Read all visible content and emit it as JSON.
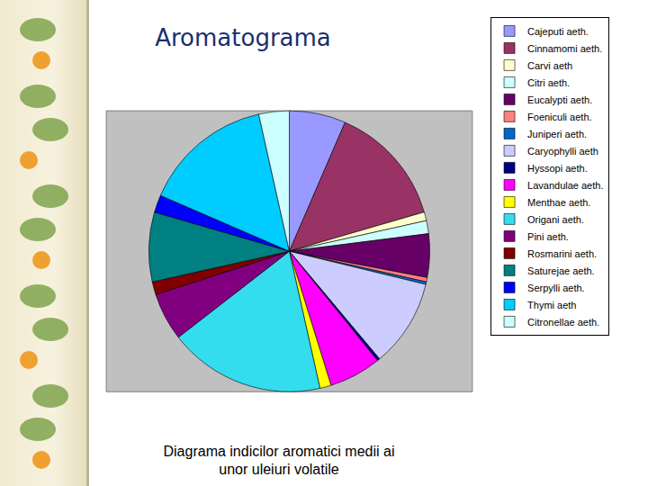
{
  "chart_data": {
    "type": "pie",
    "title": "Aromatograma",
    "subtitle": "Diagrama indicilor aromatici medii ai unor uleiuri volatile",
    "categories": [
      "Cajeputi aeth.",
      "Cinnamomi aeth.",
      "Carvi aeth",
      "Citri aeth.",
      "Eucalypti aeth.",
      "Foeniculi aeth.",
      "Juniperi aeth.",
      "Caryophylli aeth",
      "Hyssopi aeth.",
      "Lavandulae aeth.",
      "Menthae aeth.",
      "Origani aeth.",
      "Pini aeth.",
      "Rosmarini aeth.",
      "Saturejae aeth.",
      "Serpylli aeth.",
      "Thymi aeth",
      "Citronellae aeth."
    ],
    "values": [
      6.5,
      14,
      1,
      1.5,
      5,
      0.5,
      0.3,
      10.1,
      0.3,
      6,
      1.3,
      18,
      5.5,
      1.5,
      8,
      2,
      15,
      3.5
    ],
    "colors": [
      "#9999ff",
      "#993366",
      "#ffffcc",
      "#ccffff",
      "#660066",
      "#ff8080",
      "#0066cc",
      "#ccccff",
      "#000080",
      "#ff00ff",
      "#ffff00",
      "#33ddee",
      "#800080",
      "#800000",
      "#008080",
      "#0000ff",
      "#00ccff",
      "#ccffff"
    ],
    "legend": "right"
  }
}
